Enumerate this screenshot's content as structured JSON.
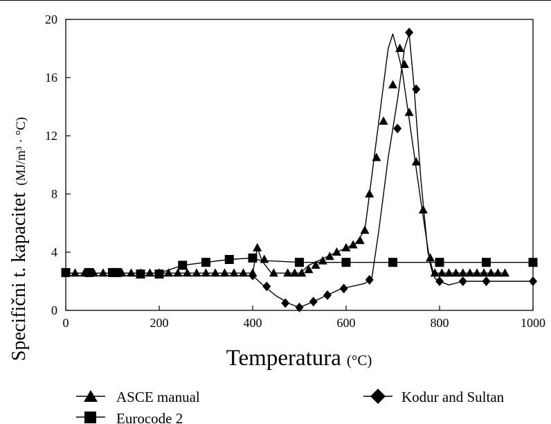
{
  "chart_data": {
    "type": "line",
    "xlabel": "Temperatura",
    "xlabel_unit": "(°C)",
    "ylabel": "Specifični t. kapacitet",
    "ylabel_unit": "(MJ/m³ · °C)",
    "xlim": [
      0,
      1000
    ],
    "ylim": [
      0,
      20
    ],
    "x_ticks": [
      0,
      200,
      400,
      600,
      800,
      1000
    ],
    "y_ticks": [
      0,
      4,
      8,
      12,
      16,
      20
    ],
    "grid": false,
    "legend_position": "bottom",
    "series": [
      {
        "name": "ASCE manual",
        "marker": "triangle",
        "color": "#000000",
        "line_x": [
          0,
          20,
          40,
          60,
          80,
          100,
          120,
          140,
          160,
          180,
          200,
          220,
          240,
          260,
          280,
          300,
          320,
          340,
          360,
          380,
          400,
          410,
          420,
          440,
          460,
          480,
          500,
          510,
          520,
          540,
          560,
          580,
          600,
          620,
          640,
          650,
          660,
          670,
          680,
          690,
          700,
          710,
          720,
          740,
          760,
          780,
          785,
          800,
          820,
          840,
          860,
          880,
          900,
          920,
          940
        ],
        "line_y": [
          2.56,
          2.56,
          2.56,
          2.56,
          2.56,
          2.56,
          2.56,
          2.56,
          2.56,
          2.56,
          2.56,
          2.56,
          2.56,
          2.56,
          2.56,
          2.56,
          2.56,
          2.56,
          2.56,
          2.56,
          2.56,
          4.3,
          3.4,
          2.56,
          2.56,
          2.56,
          2.56,
          2.8,
          3.1,
          3.4,
          3.7,
          4.0,
          4.3,
          4.6,
          5.5,
          8.0,
          10.5,
          13.0,
          15.5,
          18.0,
          19.0,
          17.8,
          16.5,
          12.0,
          7.5,
          3.2,
          2.56,
          2.56,
          2.56,
          2.56,
          2.56,
          2.56,
          2.56,
          2.56,
          2.56
        ],
        "marker_x": [
          0,
          20,
          40,
          60,
          80,
          100,
          120,
          140,
          160,
          180,
          200,
          220,
          240,
          260,
          280,
          300,
          320,
          340,
          360,
          380,
          400,
          410,
          425,
          445,
          475,
          490,
          505,
          520,
          535,
          550,
          565,
          580,
          600,
          615,
          630,
          640,
          650,
          665,
          680,
          700,
          715,
          725,
          735,
          750,
          765,
          780,
          790,
          805,
          820,
          835,
          850,
          865,
          880,
          895,
          910,
          925,
          940
        ],
        "marker_y": [
          2.56,
          2.56,
          2.56,
          2.56,
          2.56,
          2.56,
          2.56,
          2.56,
          2.56,
          2.56,
          2.56,
          2.56,
          2.56,
          2.56,
          2.56,
          2.56,
          2.56,
          2.56,
          2.56,
          2.56,
          2.56,
          4.3,
          3.5,
          2.56,
          2.56,
          2.56,
          2.56,
          2.8,
          3.1,
          3.4,
          3.7,
          4.0,
          4.3,
          4.5,
          4.8,
          5.5,
          8.0,
          10.5,
          13.0,
          15.5,
          18.0,
          16.9,
          13.6,
          10.2,
          6.9,
          3.6,
          2.56,
          2.56,
          2.56,
          2.56,
          2.56,
          2.56,
          2.56,
          2.56,
          2.56,
          2.56,
          2.56
        ]
      },
      {
        "name": "Eurocode 2",
        "marker": "square",
        "color": "#000000",
        "line_x": [
          0,
          100,
          200,
          250,
          300,
          350,
          400,
          410,
          420,
          440,
          500,
          510,
          600,
          610,
          700,
          800,
          900,
          1000
        ],
        "line_y": [
          2.56,
          2.56,
          2.56,
          3.1,
          3.3,
          3.5,
          3.6,
          3.5,
          3.4,
          3.4,
          3.3,
          3.3,
          3.3,
          3.3,
          3.3,
          3.3,
          3.3,
          3.3
        ],
        "marker_x": [
          0,
          50,
          100,
          110,
          160,
          200,
          250,
          300,
          350,
          400,
          500,
          600,
          700,
          800,
          900,
          1000
        ],
        "marker_y": [
          2.6,
          2.6,
          2.6,
          2.6,
          2.5,
          2.5,
          3.1,
          3.3,
          3.5,
          3.6,
          3.3,
          3.3,
          3.3,
          3.3,
          3.3,
          3.3
        ]
      },
      {
        "name": "Kodur and Sultan",
        "marker": "diamond",
        "color": "#000000",
        "line_x": [
          0,
          100,
          200,
          300,
          400,
          420,
          450,
          480,
          500,
          530,
          560,
          590,
          620,
          640,
          655,
          670,
          690,
          710,
          725,
          735,
          745,
          760,
          775,
          790,
          800,
          820,
          850,
          900,
          1000
        ],
        "line_y": [
          2.4,
          2.4,
          2.4,
          2.4,
          2.4,
          1.8,
          1.0,
          0.45,
          0.2,
          0.6,
          1.05,
          1.5,
          1.7,
          1.85,
          2.2,
          5.5,
          10.5,
          14.5,
          18.0,
          19.0,
          15.5,
          9.0,
          4.0,
          2.2,
          2.0,
          1.75,
          2.0,
          2.0,
          2.0
        ],
        "marker_x": [
          400,
          430,
          470,
          500,
          530,
          560,
          595,
          650,
          710,
          735,
          750,
          800,
          850,
          900,
          1000
        ],
        "marker_y": [
          2.4,
          1.65,
          0.5,
          0.2,
          0.6,
          1.05,
          1.5,
          2.1,
          12.5,
          19.1,
          15.2,
          2.0,
          2.0,
          2.0,
          2.0
        ]
      }
    ]
  }
}
